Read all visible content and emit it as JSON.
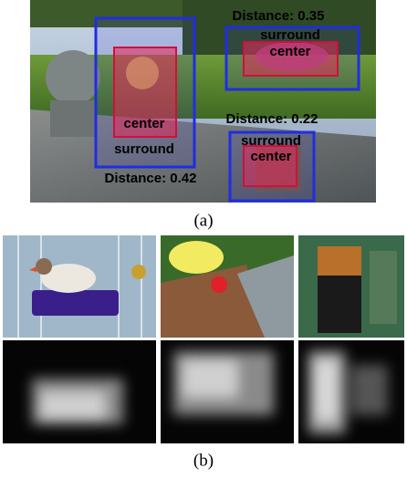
{
  "panel_a": {
    "label": "(a)",
    "regions": [
      {
        "distance": "Distance: 0.42",
        "surround": "surround",
        "center": "center"
      },
      {
        "distance": "Distance: 0.35",
        "surround": "surround",
        "center": "center"
      },
      {
        "distance": "Distance: 0.22",
        "surround": "surround",
        "center": "center"
      }
    ]
  },
  "panel_b": {
    "label": "(b)"
  }
}
